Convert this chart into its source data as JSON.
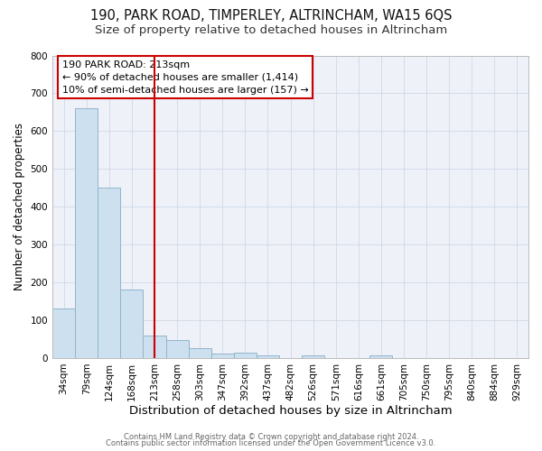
{
  "title": "190, PARK ROAD, TIMPERLEY, ALTRINCHAM, WA15 6QS",
  "subtitle": "Size of property relative to detached houses in Altrincham",
  "xlabel": "Distribution of detached houses by size in Altrincham",
  "ylabel": "Number of detached properties",
  "footer1": "Contains HM Land Registry data © Crown copyright and database right 2024.",
  "footer2": "Contains public sector information licensed under the Open Government Licence v3.0.",
  "categories": [
    "34sqm",
    "79sqm",
    "124sqm",
    "168sqm",
    "213sqm",
    "258sqm",
    "303sqm",
    "347sqm",
    "392sqm",
    "437sqm",
    "482sqm",
    "526sqm",
    "571sqm",
    "616sqm",
    "661sqm",
    "705sqm",
    "750sqm",
    "795sqm",
    "840sqm",
    "884sqm",
    "929sqm"
  ],
  "values": [
    130,
    660,
    451,
    182,
    60,
    48,
    25,
    11,
    14,
    8,
    0,
    7,
    0,
    0,
    8,
    0,
    0,
    0,
    0,
    0,
    0
  ],
  "bar_color": "#cde0f0",
  "bar_edge_color": "#92b4cc",
  "vline_color": "#cc0000",
  "vline_index": 4,
  "annotation_text": "190 PARK ROAD: 213sqm\n← 90% of detached houses are smaller (1,414)\n10% of semi-detached houses are larger (157) →",
  "annotation_box_facecolor": "#ffffff",
  "annotation_box_edgecolor": "#cc0000",
  "ylim": [
    0,
    800
  ],
  "yticks": [
    0,
    100,
    200,
    300,
    400,
    500,
    600,
    700,
    800
  ],
  "title_fontsize": 10.5,
  "subtitle_fontsize": 9.5,
  "xlabel_fontsize": 9.5,
  "ylabel_fontsize": 8.5,
  "tick_fontsize": 7.5,
  "annotation_fontsize": 8,
  "footer_fontsize": 6,
  "grid_color": "#d0d8e8",
  "background_color": "#eef2f8"
}
